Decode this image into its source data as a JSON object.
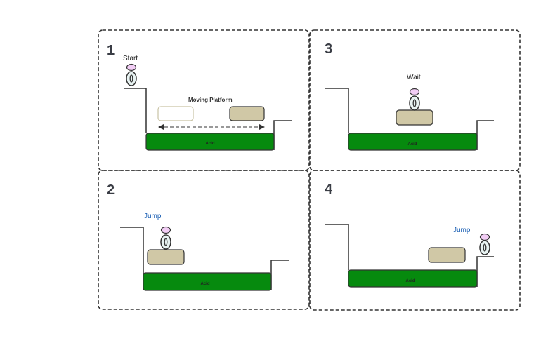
{
  "panels": [
    {
      "number": "1",
      "status_label": "Start",
      "platform_label": "Moving Platform",
      "acid_label": "Acid"
    },
    {
      "number": "2",
      "status_label": "Jump",
      "acid_label": "Acid"
    },
    {
      "number": "3",
      "status_label": "Wait",
      "acid_label": "Acid"
    },
    {
      "number": "4",
      "status_label": "Jump",
      "acid_label": "Acid"
    }
  ],
  "colors": {
    "acid": "#068a0e",
    "platform": "#d0c8a6",
    "platform_ghost": "#ffffff",
    "character_head": "#f2cdf5",
    "character_body": "#e8f3f2",
    "label_blue": "#1a5fb4"
  },
  "icons": {
    "character": "character-icon",
    "arrow": "double-arrow-icon"
  }
}
